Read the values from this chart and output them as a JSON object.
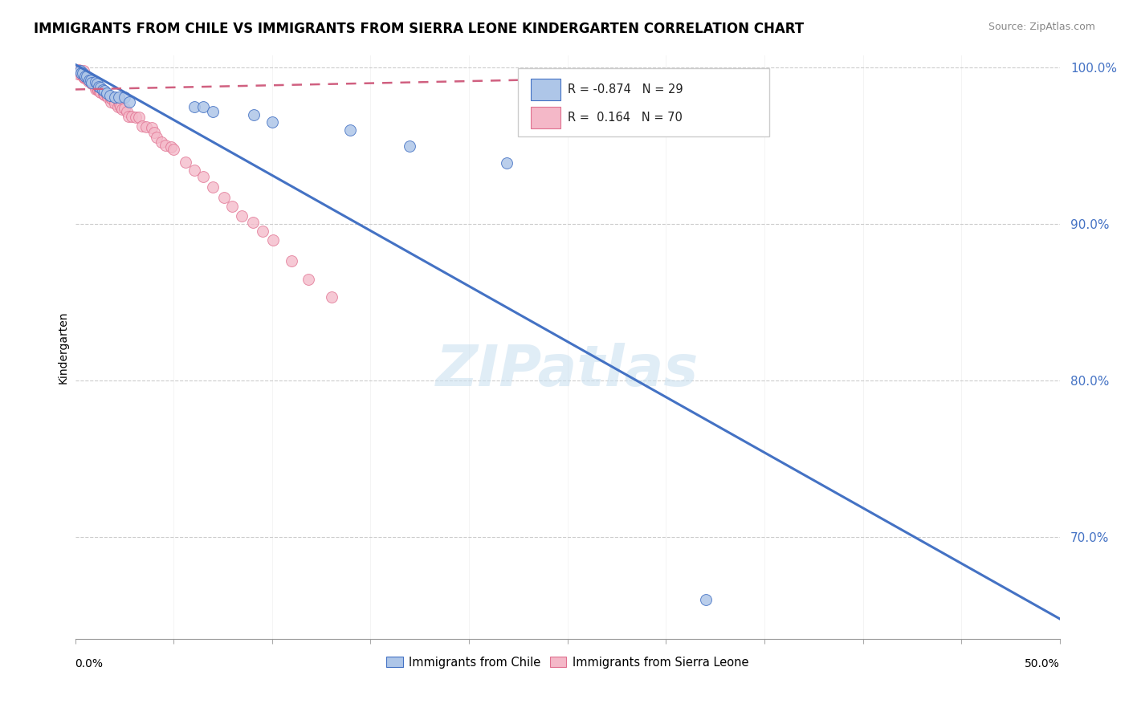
{
  "title": "IMMIGRANTS FROM CHILE VS IMMIGRANTS FROM SIERRA LEONE KINDERGARTEN CORRELATION CHART",
  "source": "Source: ZipAtlas.com",
  "ylabel": "Kindergarten",
  "xlim": [
    0.0,
    0.5
  ],
  "ylim": [
    0.635,
    1.008
  ],
  "ytick_positions": [
    0.7,
    0.8,
    0.9,
    1.0
  ],
  "ytick_labels": [
    "70.0%",
    "80.0%",
    "90.0%",
    "100.0%"
  ],
  "legend_r_chile": "-0.874",
  "legend_n_chile": "29",
  "legend_r_sierra": "0.164",
  "legend_n_sierra": "70",
  "chile_color": "#aec6e8",
  "sierra_color": "#f4b8c8",
  "chile_edge_color": "#4472c4",
  "sierra_edge_color": "#e07090",
  "chile_line_color": "#4472c4",
  "sierra_line_color": "#d06080",
  "watermark_color": "#c8dff0",
  "background_color": "#ffffff",
  "grid_color": "#cccccc",
  "tick_label_color": "#4472c4",
  "chile_trend_x": [
    0.0,
    0.5
  ],
  "chile_trend_y": [
    1.002,
    0.648
  ],
  "sierra_trend_x": [
    0.0,
    0.3
  ],
  "sierra_trend_y": [
    0.986,
    0.994
  ],
  "chile_scatter_x": [
    0.002,
    0.003,
    0.004,
    0.005,
    0.006,
    0.007,
    0.008,
    0.009,
    0.01,
    0.011,
    0.012,
    0.013,
    0.014,
    0.015,
    0.016,
    0.018,
    0.02,
    0.022,
    0.025,
    0.028,
    0.06,
    0.065,
    0.07,
    0.09,
    0.1,
    0.14,
    0.17,
    0.22,
    0.32
  ],
  "chile_scatter_y": [
    0.998,
    0.997,
    0.996,
    0.995,
    0.994,
    0.993,
    0.992,
    0.991,
    0.99,
    0.989,
    0.988,
    0.987,
    0.986,
    0.985,
    0.984,
    0.983,
    0.982,
    0.981,
    0.98,
    0.978,
    0.975,
    0.974,
    0.972,
    0.97,
    0.965,
    0.96,
    0.95,
    0.94,
    0.66
  ],
  "sierra_scatter_x": [
    0.001,
    0.002,
    0.003,
    0.003,
    0.004,
    0.004,
    0.005,
    0.005,
    0.006,
    0.006,
    0.007,
    0.007,
    0.008,
    0.008,
    0.009,
    0.009,
    0.01,
    0.01,
    0.011,
    0.011,
    0.012,
    0.012,
    0.013,
    0.013,
    0.014,
    0.014,
    0.015,
    0.015,
    0.016,
    0.016,
    0.017,
    0.017,
    0.018,
    0.018,
    0.019,
    0.02,
    0.02,
    0.021,
    0.022,
    0.022,
    0.023,
    0.024,
    0.025,
    0.026,
    0.027,
    0.028,
    0.03,
    0.032,
    0.034,
    0.036,
    0.038,
    0.04,
    0.042,
    0.044,
    0.046,
    0.048,
    0.05,
    0.055,
    0.06,
    0.065,
    0.07,
    0.075,
    0.08,
    0.085,
    0.09,
    0.095,
    0.1,
    0.11,
    0.12,
    0.13
  ],
  "sierra_scatter_y": [
    0.998,
    0.997,
    0.996,
    0.996,
    0.995,
    0.995,
    0.994,
    0.994,
    0.993,
    0.993,
    0.992,
    0.991,
    0.99,
    0.99,
    0.989,
    0.989,
    0.988,
    0.988,
    0.987,
    0.987,
    0.986,
    0.986,
    0.985,
    0.985,
    0.984,
    0.984,
    0.983,
    0.983,
    0.982,
    0.982,
    0.981,
    0.981,
    0.98,
    0.98,
    0.979,
    0.978,
    0.978,
    0.977,
    0.976,
    0.976,
    0.975,
    0.974,
    0.973,
    0.972,
    0.971,
    0.97,
    0.968,
    0.966,
    0.964,
    0.962,
    0.96,
    0.958,
    0.956,
    0.954,
    0.952,
    0.95,
    0.948,
    0.942,
    0.936,
    0.93,
    0.924,
    0.918,
    0.912,
    0.906,
    0.9,
    0.894,
    0.888,
    0.876,
    0.864,
    0.852
  ]
}
